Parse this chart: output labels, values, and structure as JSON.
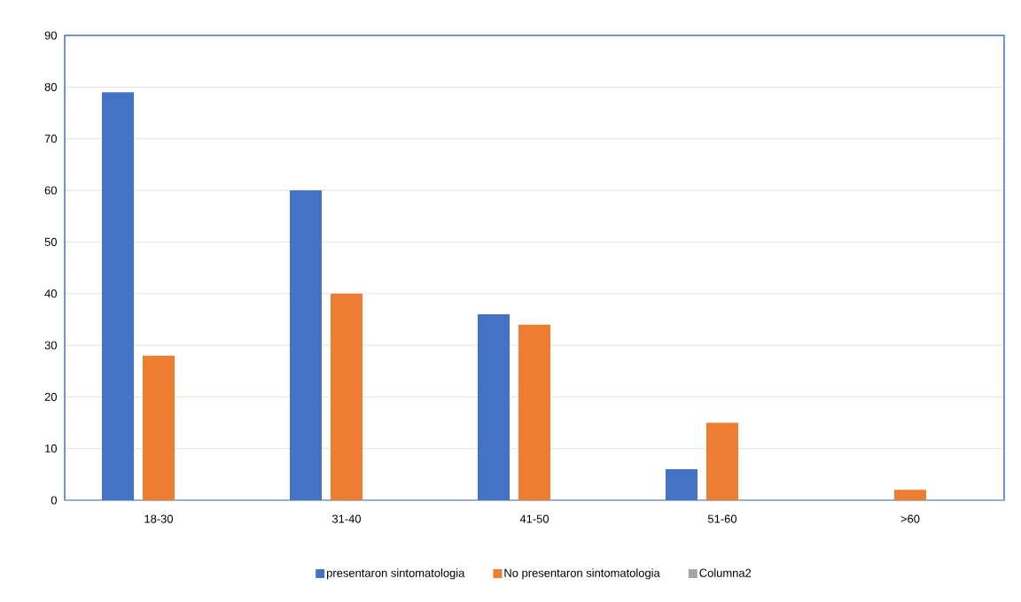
{
  "chart_data": {
    "type": "bar",
    "categories": [
      "18-30",
      "31-40",
      "41-50",
      "51-60",
      ">60"
    ],
    "series": [
      {
        "name": "presentaron sintomatologia",
        "color": "#4472c4",
        "values": [
          79,
          60,
          36,
          6,
          null
        ]
      },
      {
        "name": "No presentaron sintomatologia",
        "color": "#ed7d31",
        "values": [
          28,
          40,
          34,
          15,
          2
        ]
      },
      {
        "name": "Columna2",
        "color": "#a5a5a5",
        "values": [
          null,
          null,
          null,
          null,
          null
        ]
      }
    ],
    "ylim": [
      0,
      90
    ],
    "yticks": [
      0,
      10,
      20,
      30,
      40,
      50,
      60,
      70,
      80,
      90
    ],
    "grid": "y",
    "legend": "bottom"
  }
}
